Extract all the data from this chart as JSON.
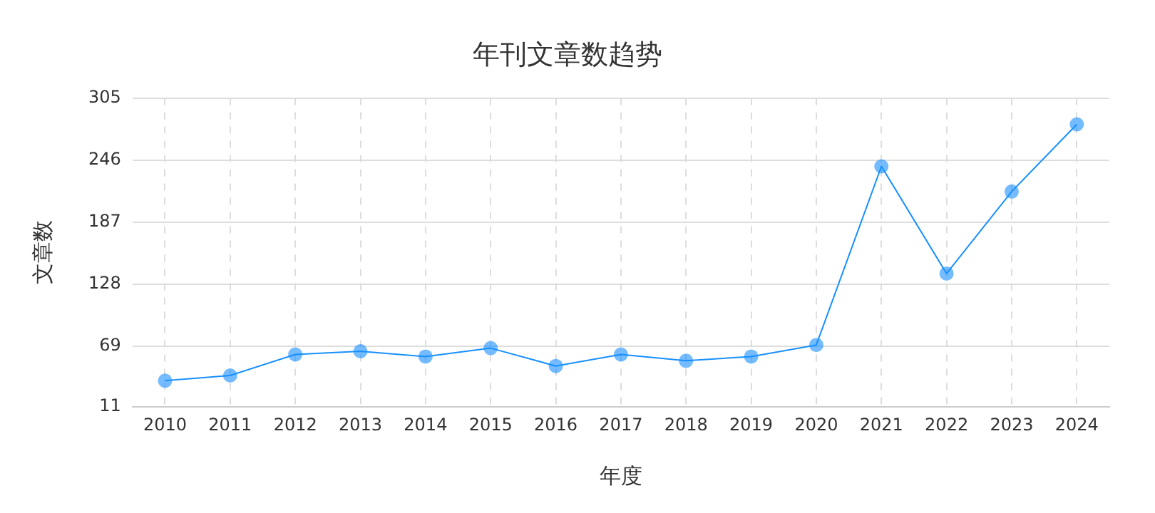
{
  "chart_data": {
    "type": "line",
    "title": "年刊文章数趋势",
    "xlabel": "年度",
    "ylabel": "文章数",
    "categories": [
      "2010",
      "2011",
      "2012",
      "2013",
      "2014",
      "2015",
      "2016",
      "2017",
      "2018",
      "2019",
      "2020",
      "2021",
      "2022",
      "2023",
      "2024"
    ],
    "series": [
      {
        "color": "#1890ff",
        "values": [
          36,
          41,
          61,
          64,
          59,
          67,
          50,
          61,
          55,
          59,
          70,
          240,
          138,
          216,
          280
        ]
      }
    ],
    "ylim": [
      11,
      305
    ],
    "yticks": [
      11,
      69,
      128,
      187,
      246,
      305
    ],
    "grid": true,
    "marker": "circle",
    "line_style": "solid",
    "legend": false
  }
}
